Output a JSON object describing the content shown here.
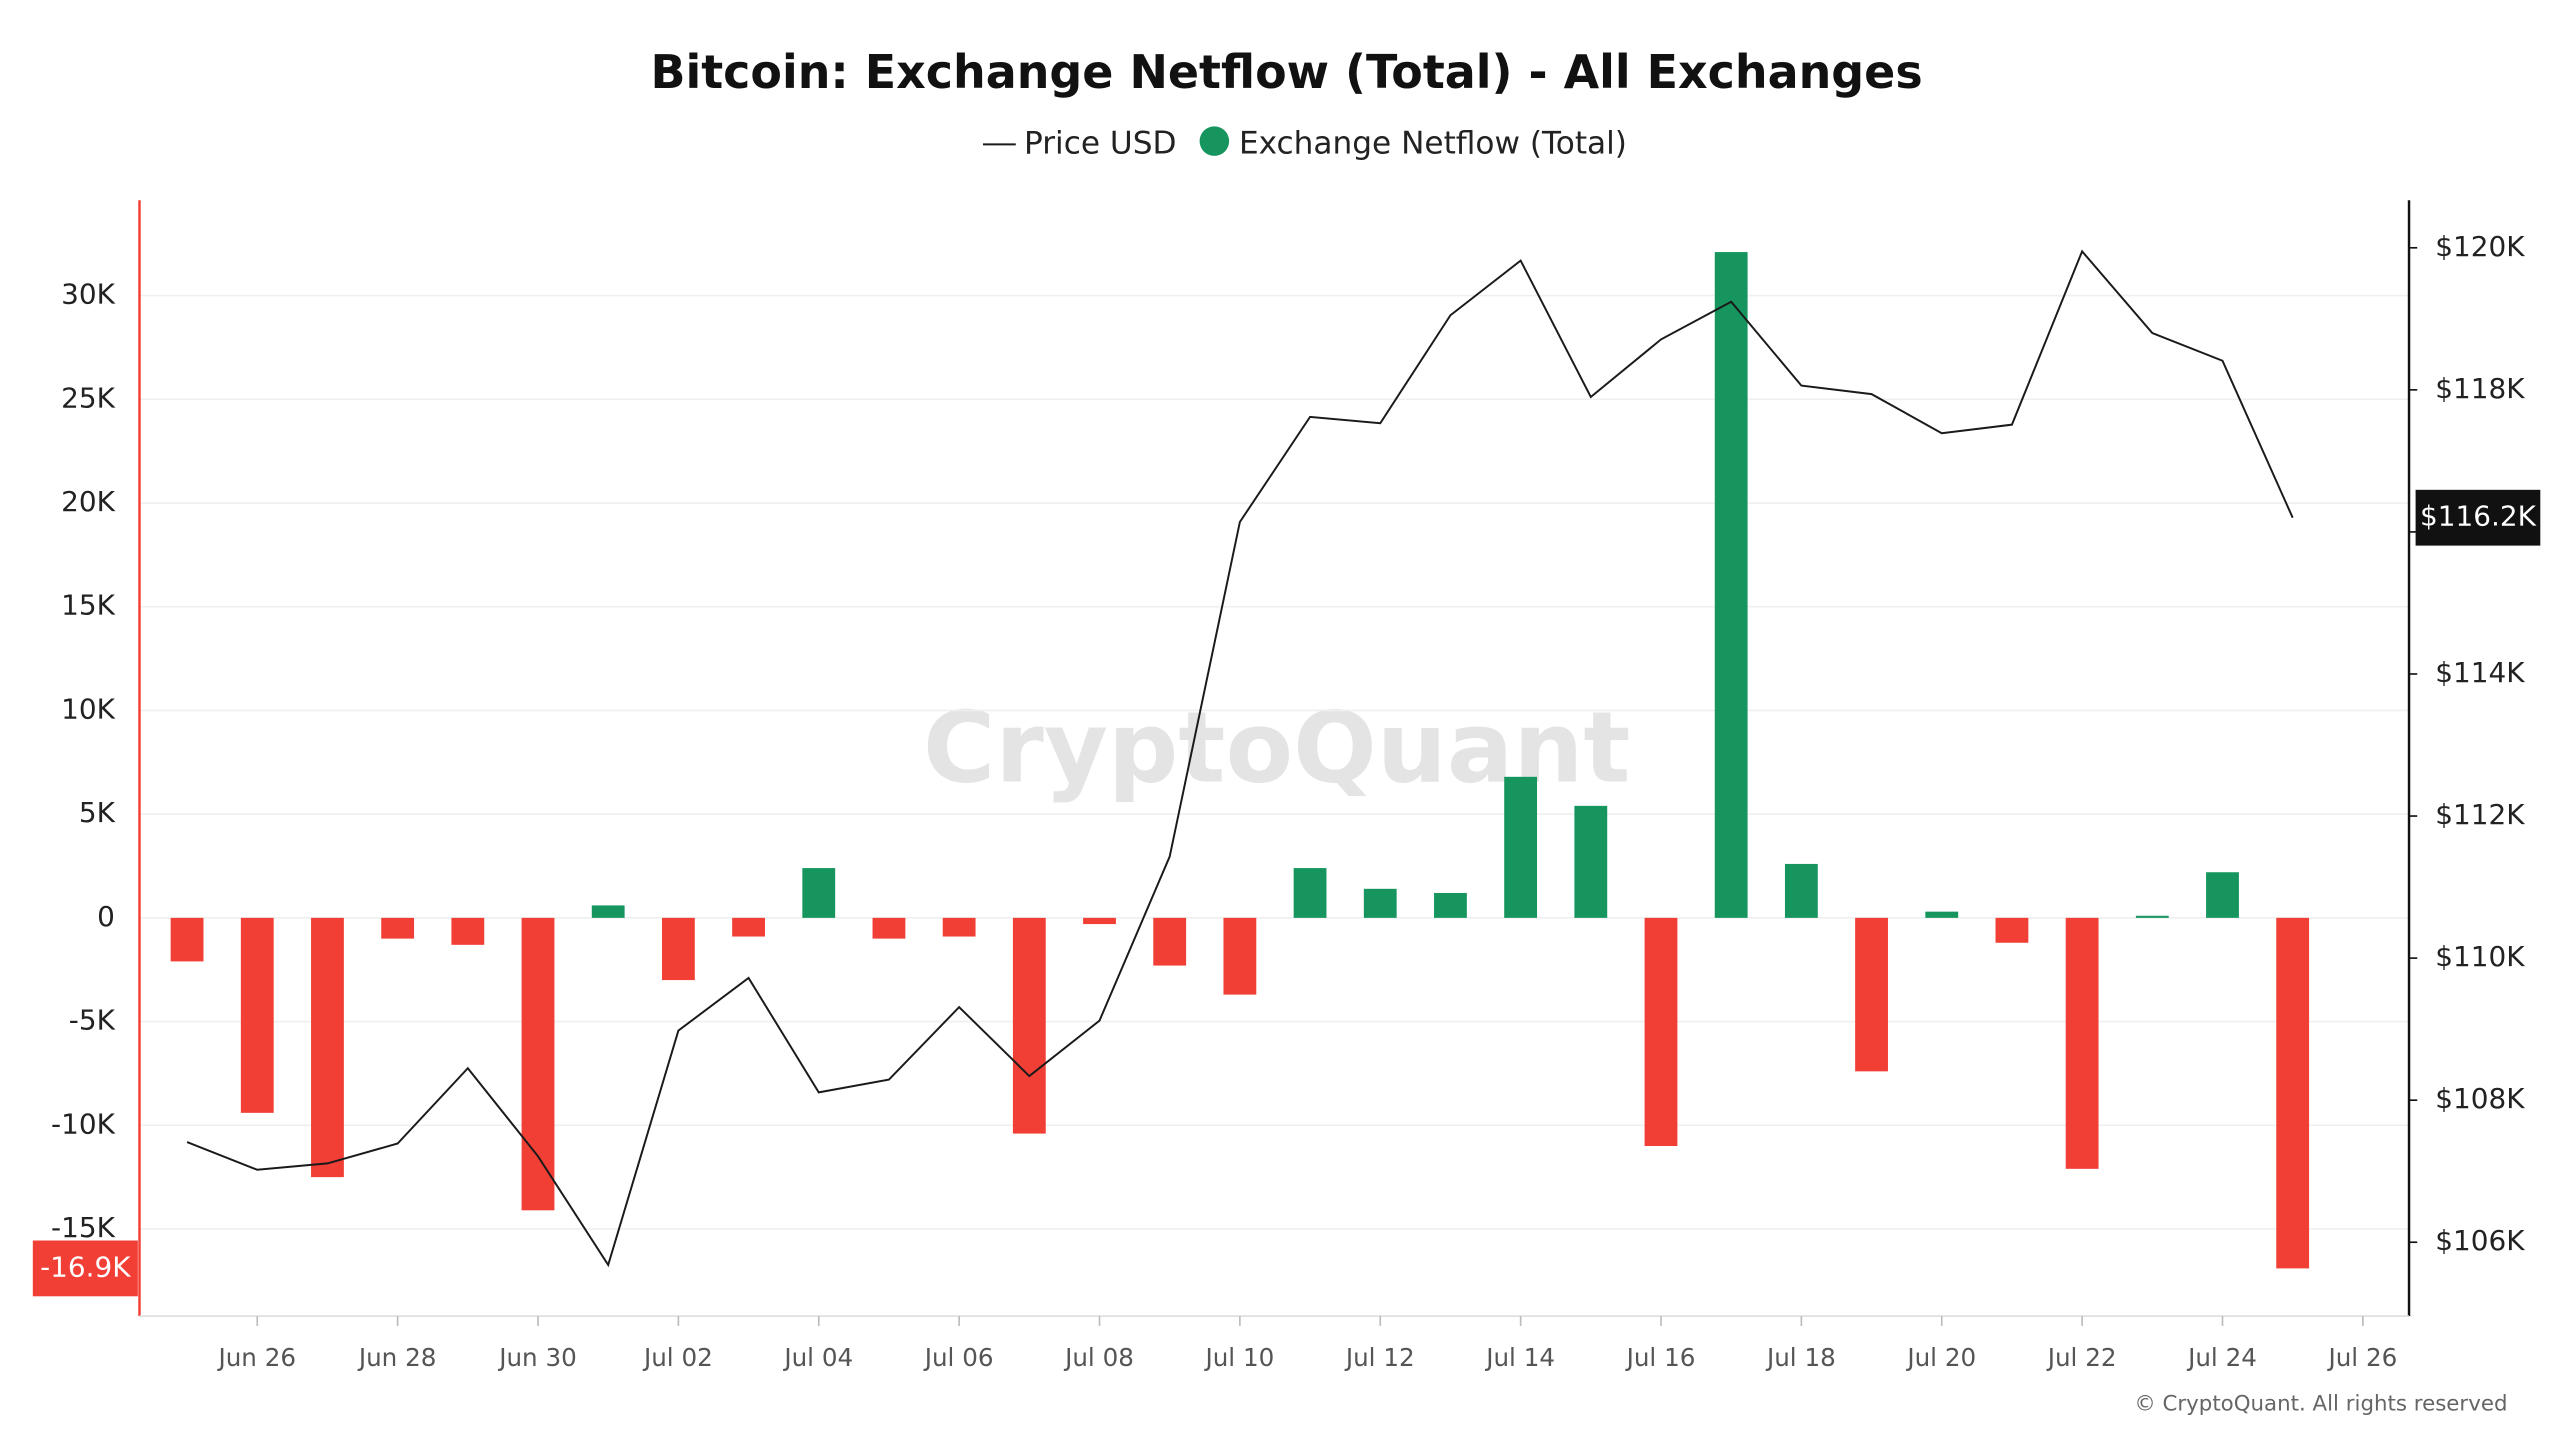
{
  "chart_data": {
    "type": "bar-line",
    "title": "Bitcoin: Exchange Netflow (Total) - All Exchanges",
    "watermark": "CryptoQuant",
    "credit": "© CryptoQuant. All rights reserved",
    "categories": [
      null,
      "Jun 26",
      null,
      "Jun 28",
      null,
      "Jun 30",
      null,
      "Jul 02",
      null,
      "Jul 04",
      null,
      "Jul 06",
      null,
      "Jul 08",
      null,
      "Jul 10",
      null,
      "Jul 12",
      null,
      "Jul 14",
      null,
      "Jul 16",
      null,
      "Jul 18",
      null,
      "Jul 20",
      null,
      "Jul 22",
      null,
      "Jul 24",
      null,
      "Jul 26"
    ],
    "series": [
      {
        "name": "Price USD",
        "type": "line",
        "axis": "y2",
        "color": "#1a1a1a",
        "values": [
          107410,
          107020,
          107110,
          107390,
          108450,
          107210,
          105680,
          108980,
          109720,
          108110,
          108290,
          109310,
          108340,
          109120,
          111430,
          116140,
          117620,
          117530,
          119050,
          119820,
          117900,
          118710,
          119240,
          118060,
          117940,
          117390,
          117510,
          119950,
          118800,
          118410,
          116200,
          null
        ],
        "value_labels": [
          null,
          null,
          null,
          null,
          null,
          null,
          null,
          null,
          null,
          null,
          null,
          null,
          null,
          null,
          null,
          null,
          null,
          null,
          null,
          null,
          null,
          null,
          null,
          null,
          null,
          null,
          null,
          null,
          null,
          null,
          "$116.2K",
          null
        ]
      },
      {
        "name": "Exchange Netflow (Total)",
        "type": "bar",
        "color": "#16955f",
        "negative_color": "#f23f35",
        "values": [
          -2100,
          -9400,
          -12500,
          -1000,
          -1300,
          -14100,
          600,
          -3000,
          -900,
          2400,
          -1000,
          -900,
          -10400,
          -300,
          -2300,
          -3700,
          2400,
          1400,
          1200,
          6800,
          5400,
          -11000,
          32100,
          2600,
          -7400,
          300,
          -1200,
          -12100,
          100,
          2200,
          -16900,
          null
        ],
        "value_labels": [
          null,
          null,
          null,
          null,
          null,
          null,
          null,
          null,
          null,
          null,
          null,
          null,
          null,
          null,
          null,
          null,
          null,
          null,
          null,
          null,
          null,
          null,
          null,
          null,
          null,
          null,
          null,
          null,
          null,
          null,
          "-16.9K",
          null
        ]
      }
    ],
    "ylim": [
      -19200,
      34600
    ],
    "yticks": [
      {
        "value": -15000,
        "label": "-15K"
      },
      {
        "value": -10000,
        "label": "-10K"
      },
      {
        "value": -5000,
        "label": "-5K"
      },
      0,
      {
        "value": 5000,
        "label": "5K"
      },
      {
        "value": 10000,
        "label": "10K"
      },
      {
        "value": 15000,
        "label": "15K"
      },
      {
        "value": 20000,
        "label": "20K"
      },
      {
        "value": 25000,
        "label": "25K"
      },
      {
        "value": 30000,
        "label": "30K"
      }
    ],
    "y2lim": [
      104960,
      120670
    ],
    "y2ticks": [
      {
        "value": 106000,
        "label": "$106K"
      },
      {
        "value": 108000,
        "label": "$108K"
      },
      {
        "value": 110000,
        "label": "$110K"
      },
      {
        "value": 112000,
        "label": "$112K"
      },
      {
        "value": 114000,
        "label": "$114K"
      },
      {
        "value": 116000,
        "label": "$116K"
      },
      {
        "value": 118000,
        "label": "$118K"
      },
      {
        "value": 120000,
        "label": "$120K"
      }
    ],
    "grid": true,
    "legend": "top"
  }
}
